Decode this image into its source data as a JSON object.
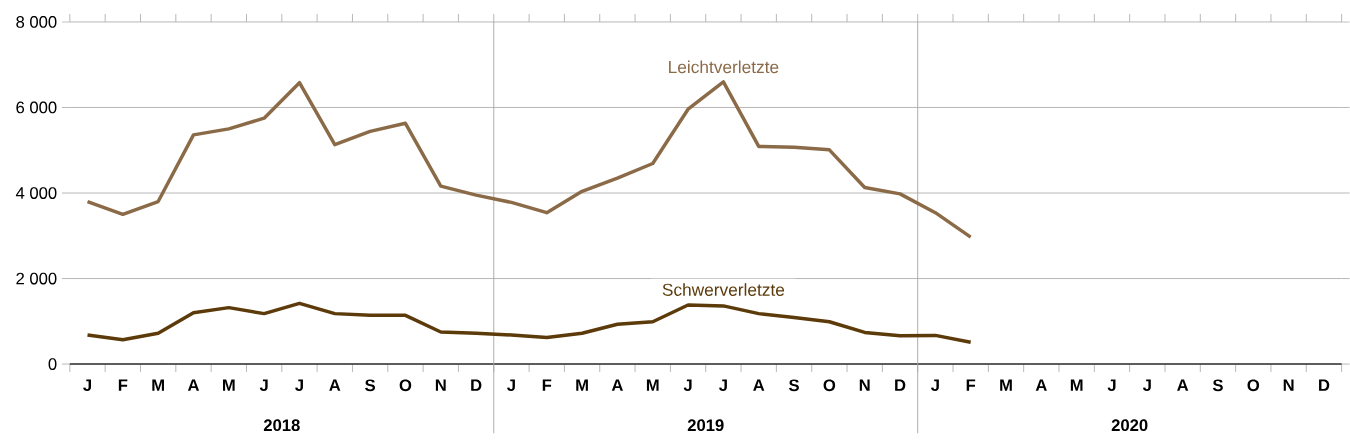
{
  "chart_data": {
    "type": "line",
    "categories": [
      "J",
      "F",
      "M",
      "A",
      "M",
      "J",
      "J",
      "A",
      "S",
      "O",
      "N",
      "D",
      "J",
      "F",
      "M",
      "A",
      "M",
      "J",
      "J",
      "A",
      "S",
      "O",
      "N",
      "D",
      "J",
      "F",
      "M",
      "A",
      "M",
      "J",
      "J",
      "A",
      "S",
      "O",
      "N",
      "D"
    ],
    "series": [
      {
        "name": "Leichtverletzte",
        "color": "#8b6a48",
        "values": [
          3800,
          3500,
          3800,
          5360,
          5500,
          5750,
          6580,
          5130,
          5440,
          5630,
          4160,
          3950,
          3780,
          3540,
          4040,
          4350,
          4690,
          5960,
          6600,
          5090,
          5070,
          5010,
          4130,
          3980,
          3540,
          2970,
          null,
          null,
          null,
          null,
          null,
          null,
          null,
          null,
          null,
          null
        ]
      },
      {
        "name": "Schwerverletzte",
        "color": "#5c3a0a",
        "values": [
          680,
          570,
          720,
          1200,
          1320,
          1180,
          1420,
          1180,
          1140,
          1140,
          750,
          720,
          680,
          620,
          720,
          930,
          990,
          1380,
          1360,
          1180,
          1090,
          990,
          740,
          660,
          670,
          510,
          null,
          null,
          null,
          null,
          null,
          null,
          null,
          null,
          null,
          null
        ]
      }
    ],
    "ylim": [
      0,
      8000
    ],
    "yticks": [
      {
        "value": 0,
        "label": "0"
      },
      {
        "value": 2000,
        "label": "2 000"
      },
      {
        "value": 4000,
        "label": "4 000"
      },
      {
        "value": 6000,
        "label": "6 000"
      },
      {
        "value": 8000,
        "label": "8 000"
      }
    ],
    "annotations": [
      "2018",
      "2019",
      "2020"
    ],
    "grid": "y",
    "marker": "none",
    "line_style": "solid"
  }
}
